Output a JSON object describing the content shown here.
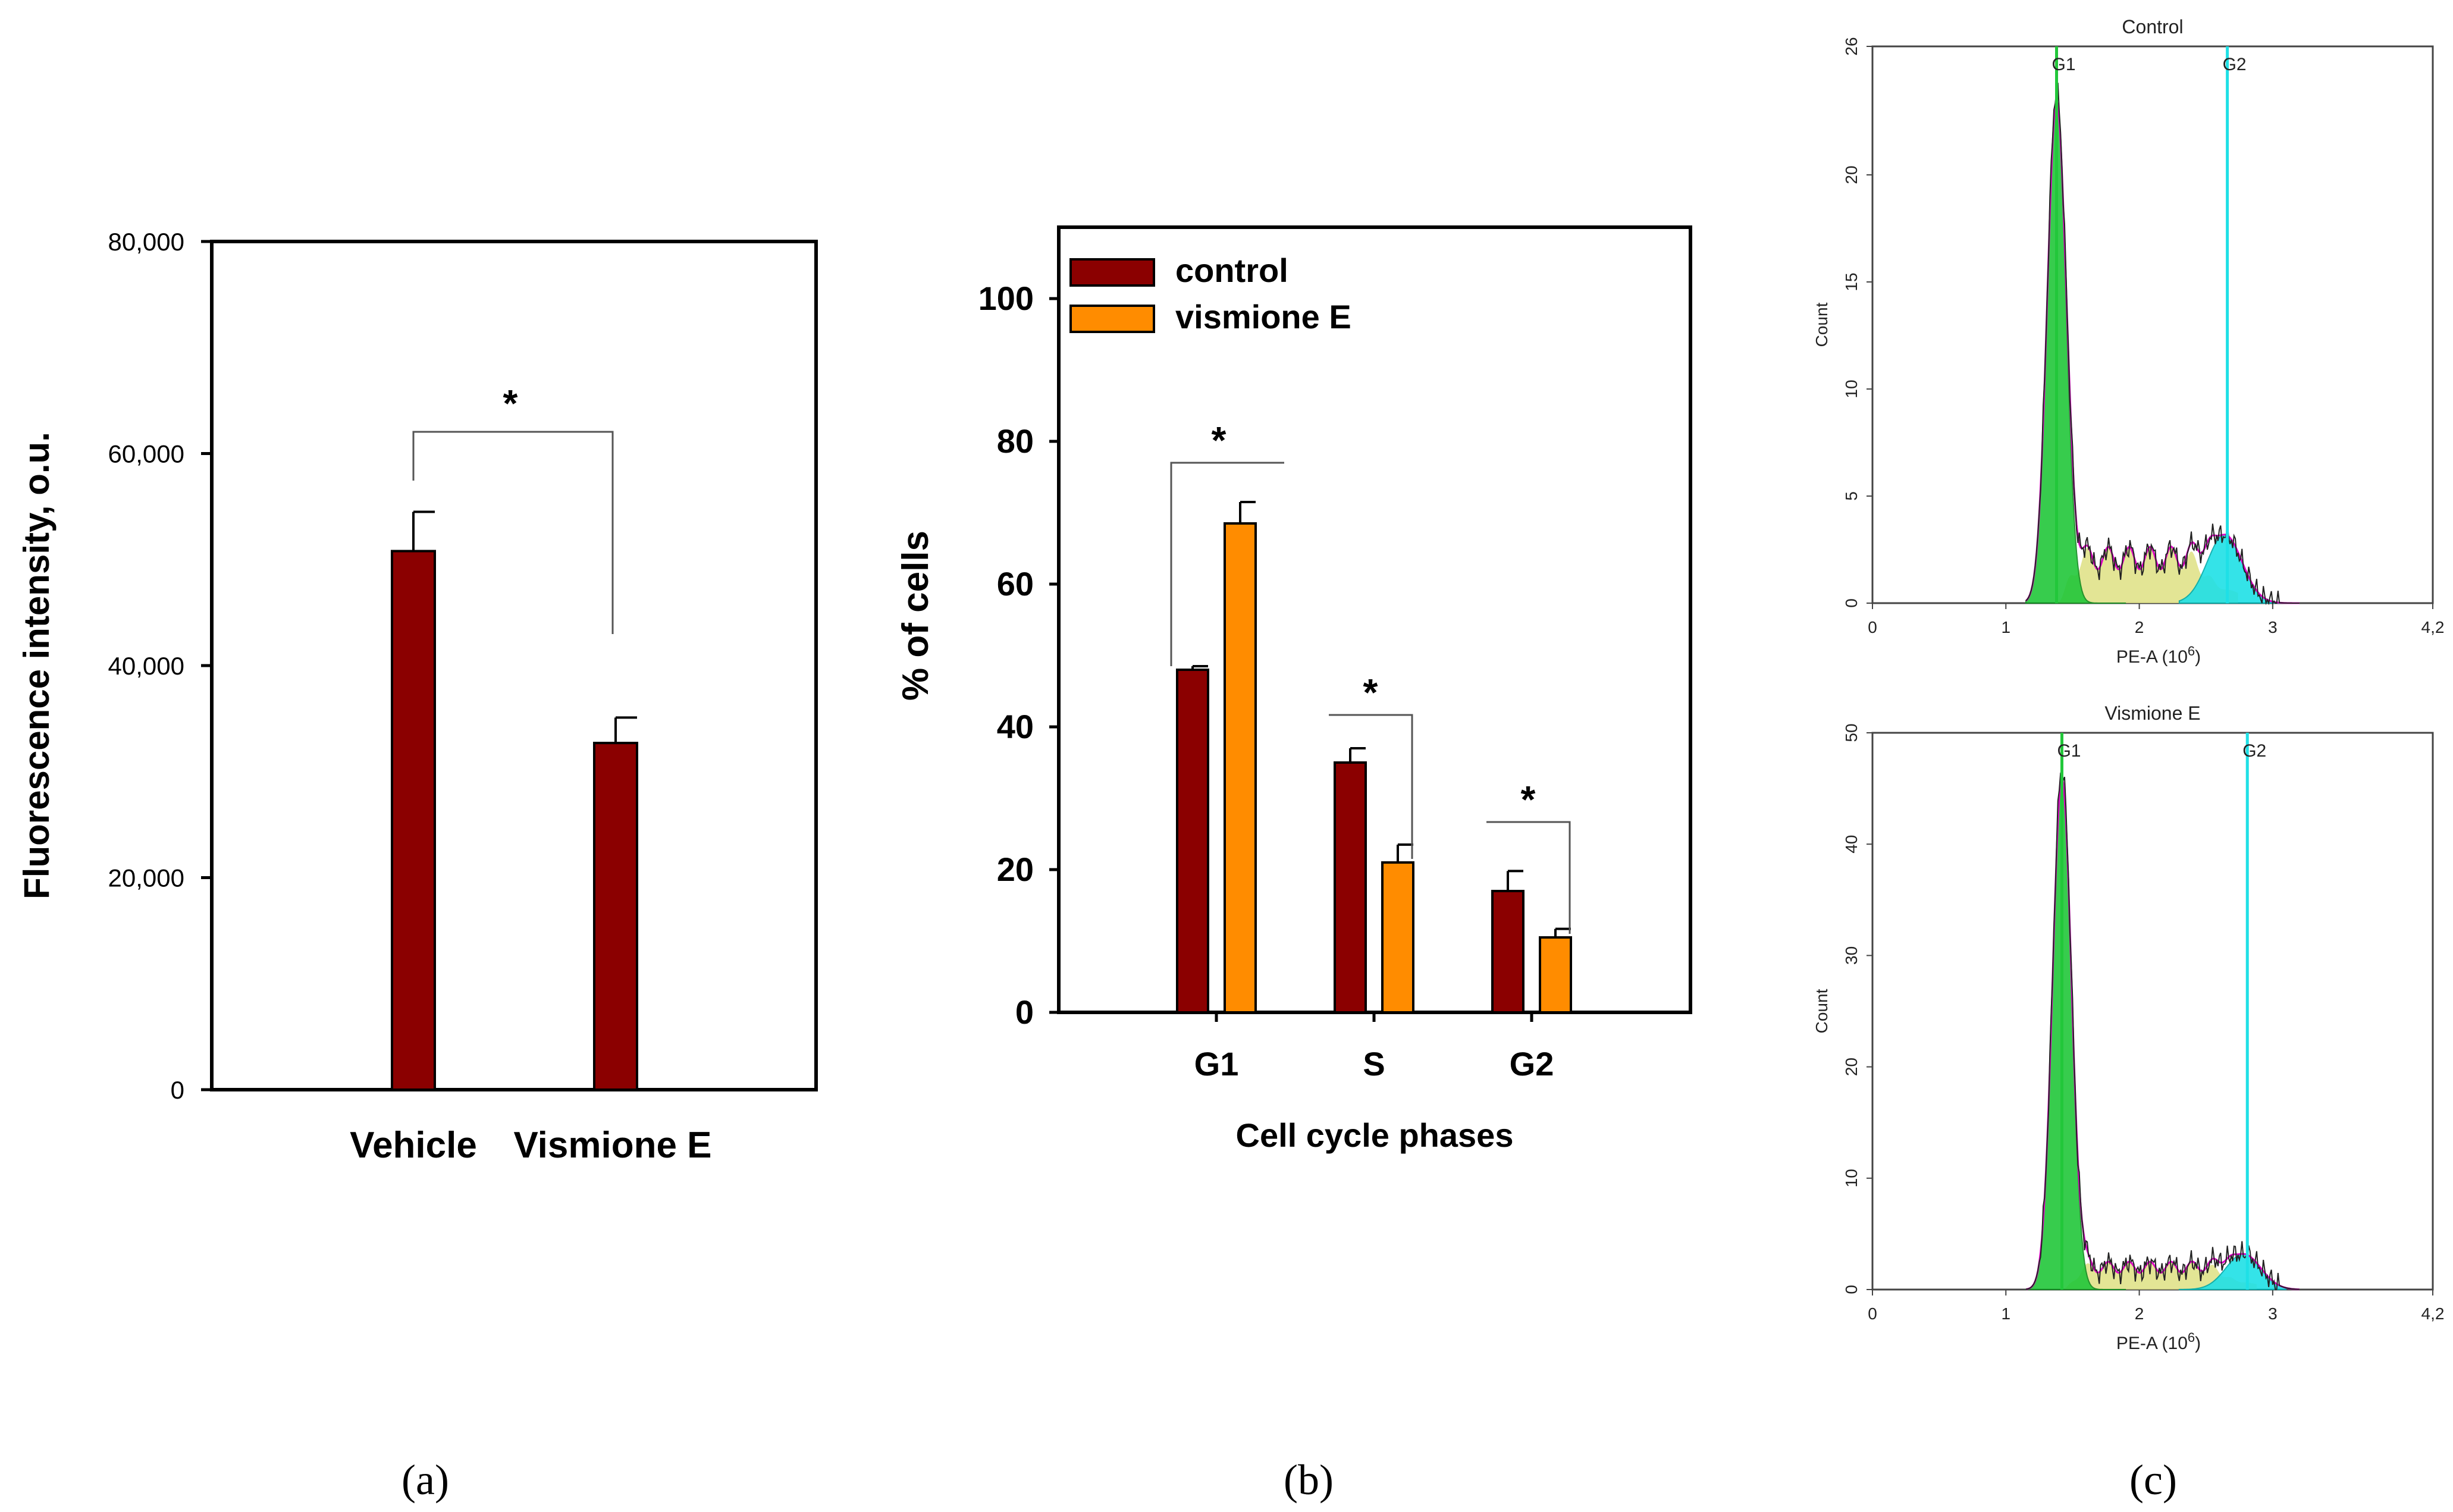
{
  "colors": {
    "dark_red": "#8B0000",
    "orange": "#FF8C00",
    "green": "#22C73A",
    "cyan": "#1FE0E6",
    "yellow": "#E0E28A",
    "magenta": "#E000C8",
    "black": "#000000"
  },
  "chart_data": [
    {
      "id": "a",
      "type": "bar",
      "title": "",
      "panel_label": "(a)",
      "categories": [
        "Vehicle",
        "Vismione E"
      ],
      "series": [
        {
          "name": "Fluorescence intensity",
          "values": [
            50800,
            32700
          ],
          "errors": [
            3700,
            2400
          ],
          "color": "#8B0000"
        }
      ],
      "xlabel": "",
      "ylabel": "Fluorescence intensity, o.u.",
      "ylim": [
        0,
        80000
      ],
      "yticks": [
        0,
        20000,
        40000,
        60000,
        80000
      ],
      "ytick_labels": [
        "0",
        "20,000",
        "40,000",
        "60,000",
        "80,000"
      ],
      "significance": [
        {
          "between": [
            "Vehicle",
            "Vismione E"
          ],
          "label": "*"
        }
      ],
      "grid": false
    },
    {
      "id": "b",
      "type": "bar",
      "title": "",
      "panel_label": "(b)",
      "categories": [
        "G1",
        "S",
        "G2"
      ],
      "series": [
        {
          "name": "control",
          "values": [
            48,
            35,
            17
          ],
          "errors": [
            0.5,
            2.0,
            2.8
          ],
          "color": "#8B0000"
        },
        {
          "name": "vismione E",
          "values": [
            68.5,
            21,
            10.5
          ],
          "errors": [
            3.0,
            2.5,
            1.2
          ],
          "color": "#FF8C00"
        }
      ],
      "xlabel": "Cell cycle phases",
      "ylabel": "% of cells",
      "ylim": [
        0,
        110
      ],
      "yticks": [
        0,
        20,
        40,
        60,
        80,
        100
      ],
      "legend": "top-left",
      "significance": [
        {
          "category": "G1",
          "label": "*"
        },
        {
          "category": "S",
          "label": "*"
        },
        {
          "category": "G2",
          "label": "*"
        }
      ],
      "grid": false
    },
    {
      "id": "c",
      "type": "area",
      "panel_label": "(c)",
      "plots": [
        {
          "title": "Control",
          "xlabel": "PE-A (10",
          "xlabel_sup": "6",
          "xlabel_tail": ")",
          "ylabel": "Count",
          "xlim": [
            0,
            4.2
          ],
          "ylim": [
            0,
            26
          ],
          "xticks": [
            0,
            1,
            2,
            3,
            4.2
          ],
          "xtick_labels": [
            "0",
            "1",
            "2",
            "3",
            "4,2"
          ],
          "yticks": [
            0,
            5,
            10,
            15,
            20,
            26
          ],
          "gates": [
            {
              "label": "G1",
              "x": 1.38
            },
            {
              "label": "G2",
              "x": 2.66
            }
          ],
          "peak_g1": {
            "x": 1.38,
            "height": 23.5
          },
          "peak_g2": {
            "x": 2.64,
            "height": 3.2
          },
          "s_phase_level": 2.1
        },
        {
          "title": "Vismione E",
          "xlabel": "PE-A (10",
          "xlabel_sup": "6",
          "xlabel_tail": ")",
          "ylabel": "Count",
          "xlim": [
            0,
            4.2
          ],
          "ylim": [
            0,
            50
          ],
          "xticks": [
            0,
            1,
            2,
            3,
            4.2
          ],
          "xtick_labels": [
            "0",
            "1",
            "2",
            "3",
            "4,2"
          ],
          "yticks": [
            0,
            10,
            20,
            30,
            40,
            50
          ],
          "gates": [
            {
              "label": "G1",
              "x": 1.42
            },
            {
              "label": "G2",
              "x": 2.81
            }
          ],
          "peak_g1": {
            "x": 1.42,
            "height": 46
          },
          "peak_g2": {
            "x": 2.78,
            "height": 3.2
          },
          "s_phase_level": 2.0
        }
      ]
    }
  ]
}
